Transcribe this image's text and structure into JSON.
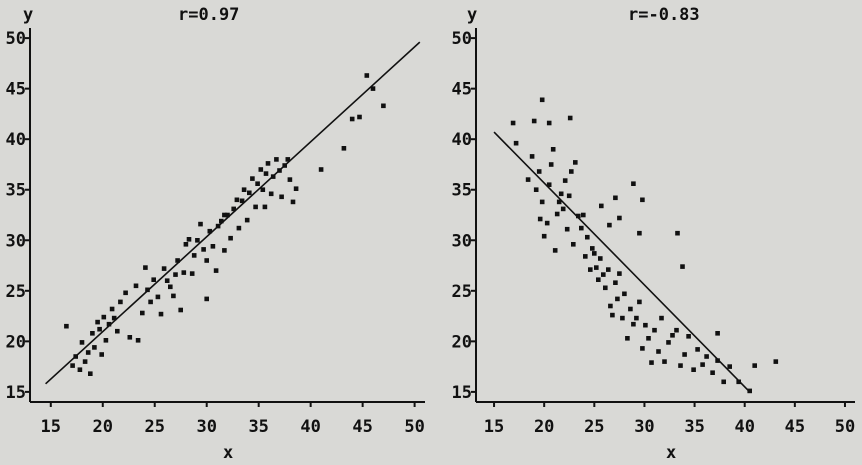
{
  "chart_data": [
    {
      "type": "scatter",
      "title": "r=0.97",
      "xlabel": "x",
      "ylabel": "y",
      "xlim": [
        13,
        51
      ],
      "ylim": [
        14,
        51
      ],
      "xticks": [
        "15",
        "20",
        "25",
        "30",
        "35",
        "40",
        "45",
        "50"
      ],
      "yticks": [
        "15",
        "20",
        "25",
        "30",
        "35",
        "40",
        "45",
        "50"
      ],
      "grid": false,
      "trend_line": {
        "x": [
          14.5,
          50.5
        ],
        "y": [
          15.8,
          49.6
        ]
      },
      "points": [
        [
          16.5,
          21.5
        ],
        [
          17.1,
          17.6
        ],
        [
          17.4,
          18.5
        ],
        [
          17.8,
          17.2
        ],
        [
          18.0,
          19.9
        ],
        [
          18.3,
          18.0
        ],
        [
          18.6,
          18.9
        ],
        [
          18.8,
          16.8
        ],
        [
          19.0,
          20.8
        ],
        [
          19.2,
          19.4
        ],
        [
          19.5,
          21.9
        ],
        [
          19.7,
          21.2
        ],
        [
          19.9,
          18.7
        ],
        [
          20.1,
          22.4
        ],
        [
          20.3,
          20.1
        ],
        [
          20.6,
          21.7
        ],
        [
          20.9,
          23.2
        ],
        [
          21.1,
          22.3
        ],
        [
          21.4,
          21.0
        ],
        [
          21.7,
          23.9
        ],
        [
          22.2,
          24.8
        ],
        [
          22.6,
          20.4
        ],
        [
          23.4,
          20.1
        ],
        [
          23.8,
          22.8
        ],
        [
          24.1,
          27.3
        ],
        [
          24.3,
          25.1
        ],
        [
          24.6,
          23.9
        ],
        [
          24.9,
          26.1
        ],
        [
          25.3,
          24.4
        ],
        [
          25.6,
          22.7
        ],
        [
          25.9,
          27.2
        ],
        [
          26.2,
          26.0
        ],
        [
          26.5,
          25.4
        ],
        [
          26.8,
          24.5
        ],
        [
          27.2,
          28.0
        ],
        [
          27.5,
          23.1
        ],
        [
          27.8,
          26.8
        ],
        [
          28.0,
          29.6
        ],
        [
          28.3,
          30.1
        ],
        [
          28.6,
          26.7
        ],
        [
          28.8,
          28.5
        ],
        [
          29.1,
          30.0
        ],
        [
          29.4,
          31.6
        ],
        [
          29.7,
          29.1
        ],
        [
          30.0,
          28.0
        ],
        [
          30.3,
          30.9
        ],
        [
          30.6,
          29.4
        ],
        [
          30.9,
          27.0
        ],
        [
          31.1,
          31.4
        ],
        [
          31.4,
          31.9
        ],
        [
          31.7,
          29.0
        ],
        [
          32.0,
          32.5
        ],
        [
          32.3,
          30.2
        ],
        [
          32.6,
          33.1
        ],
        [
          32.9,
          34.0
        ],
        [
          33.1,
          31.2
        ],
        [
          33.4,
          33.9
        ],
        [
          33.6,
          35.0
        ],
        [
          33.9,
          32.0
        ],
        [
          34.1,
          34.7
        ],
        [
          34.4,
          36.1
        ],
        [
          34.7,
          33.3
        ],
        [
          34.9,
          35.6
        ],
        [
          35.2,
          37.0
        ],
        [
          35.4,
          35.0
        ],
        [
          35.7,
          36.6
        ],
        [
          35.9,
          37.6
        ],
        [
          36.2,
          34.6
        ],
        [
          36.4,
          36.3
        ],
        [
          36.7,
          38.0
        ],
        [
          37.0,
          36.9
        ],
        [
          37.2,
          34.3
        ],
        [
          37.5,
          37.4
        ],
        [
          37.8,
          38.0
        ],
        [
          38.0,
          36.0
        ],
        [
          38.3,
          33.8
        ],
        [
          38.6,
          35.1
        ],
        [
          41.0,
          37.0
        ],
        [
          43.2,
          39.1
        ],
        [
          44.0,
          42.0
        ],
        [
          44.7,
          42.2
        ],
        [
          45.4,
          46.3
        ],
        [
          46.0,
          45.0
        ],
        [
          47.0,
          43.3
        ],
        [
          30.0,
          24.2
        ],
        [
          31.7,
          32.5
        ],
        [
          27.0,
          26.6
        ],
        [
          23.2,
          25.5
        ],
        [
          35.6,
          33.3
        ]
      ]
    },
    {
      "type": "scatter",
      "title": "r=-0.83",
      "xlabel": "x",
      "ylabel": "y",
      "xlim": [
        13.2,
        51
      ],
      "ylim": [
        14,
        51
      ],
      "xticks": [
        "15",
        "20",
        "25",
        "30",
        "35",
        "40",
        "45",
        "50"
      ],
      "yticks": [
        "15",
        "20",
        "25",
        "30",
        "35",
        "40",
        "45",
        "50"
      ],
      "grid": false,
      "trend_line": {
        "x": [
          15.0,
          40.4
        ],
        "y": [
          40.7,
          15.1
        ]
      },
      "points": [
        [
          16.9,
          41.6
        ],
        [
          17.2,
          39.6
        ],
        [
          18.4,
          36.0
        ],
        [
          18.8,
          38.3
        ],
        [
          19.0,
          41.8
        ],
        [
          19.2,
          35.0
        ],
        [
          19.5,
          36.8
        ],
        [
          19.6,
          32.1
        ],
        [
          19.8,
          33.8
        ],
        [
          20.0,
          30.4
        ],
        [
          20.3,
          31.7
        ],
        [
          20.5,
          35.5
        ],
        [
          20.7,
          37.5
        ],
        [
          20.9,
          39.0
        ],
        [
          21.1,
          29.0
        ],
        [
          21.3,
          32.6
        ],
        [
          21.5,
          33.8
        ],
        [
          21.7,
          34.6
        ],
        [
          21.9,
          33.1
        ],
        [
          22.1,
          35.9
        ],
        [
          22.3,
          31.1
        ],
        [
          22.5,
          34.4
        ],
        [
          22.7,
          36.8
        ],
        [
          22.9,
          29.6
        ],
        [
          23.1,
          37.7
        ],
        [
          23.4,
          32.4
        ],
        [
          23.7,
          31.2
        ],
        [
          23.9,
          32.5
        ],
        [
          24.1,
          28.4
        ],
        [
          24.3,
          30.3
        ],
        [
          24.6,
          27.1
        ],
        [
          24.8,
          29.2
        ],
        [
          25.0,
          28.7
        ],
        [
          25.2,
          27.3
        ],
        [
          25.4,
          26.1
        ],
        [
          25.6,
          28.2
        ],
        [
          25.9,
          26.6
        ],
        [
          26.1,
          25.3
        ],
        [
          26.4,
          27.1
        ],
        [
          26.6,
          23.5
        ],
        [
          26.8,
          22.6
        ],
        [
          27.1,
          25.8
        ],
        [
          27.3,
          24.2
        ],
        [
          27.5,
          26.7
        ],
        [
          27.8,
          22.3
        ],
        [
          28.0,
          24.7
        ],
        [
          28.3,
          20.3
        ],
        [
          28.6,
          23.2
        ],
        [
          28.9,
          21.7
        ],
        [
          29.2,
          22.3
        ],
        [
          29.5,
          23.9
        ],
        [
          29.8,
          19.3
        ],
        [
          30.1,
          21.6
        ],
        [
          30.4,
          20.3
        ],
        [
          30.7,
          17.9
        ],
        [
          31.0,
          21.1
        ],
        [
          31.4,
          19.0
        ],
        [
          31.7,
          22.3
        ],
        [
          32.0,
          18.0
        ],
        [
          32.4,
          19.9
        ],
        [
          32.8,
          20.6
        ],
        [
          33.2,
          21.1
        ],
        [
          33.6,
          17.6
        ],
        [
          34.0,
          18.7
        ],
        [
          34.4,
          20.5
        ],
        [
          34.9,
          17.2
        ],
        [
          35.3,
          19.2
        ],
        [
          35.8,
          17.7
        ],
        [
          36.2,
          18.5
        ],
        [
          36.8,
          16.9
        ],
        [
          37.3,
          18.1
        ],
        [
          37.9,
          16.0
        ],
        [
          38.5,
          17.5
        ],
        [
          39.4,
          16.0
        ],
        [
          40.5,
          15.1
        ],
        [
          41.0,
          17.6
        ],
        [
          43.1,
          18.0
        ],
        [
          27.1,
          34.2
        ],
        [
          27.5,
          32.2
        ],
        [
          28.9,
          35.6
        ],
        [
          26.5,
          31.5
        ],
        [
          29.8,
          34.0
        ],
        [
          25.7,
          33.4
        ],
        [
          20.5,
          41.6
        ],
        [
          19.8,
          43.9
        ],
        [
          22.6,
          42.1
        ],
        [
          29.5,
          30.7
        ],
        [
          33.3,
          30.7
        ],
        [
          33.8,
          27.4
        ],
        [
          37.3,
          20.8
        ]
      ]
    }
  ]
}
